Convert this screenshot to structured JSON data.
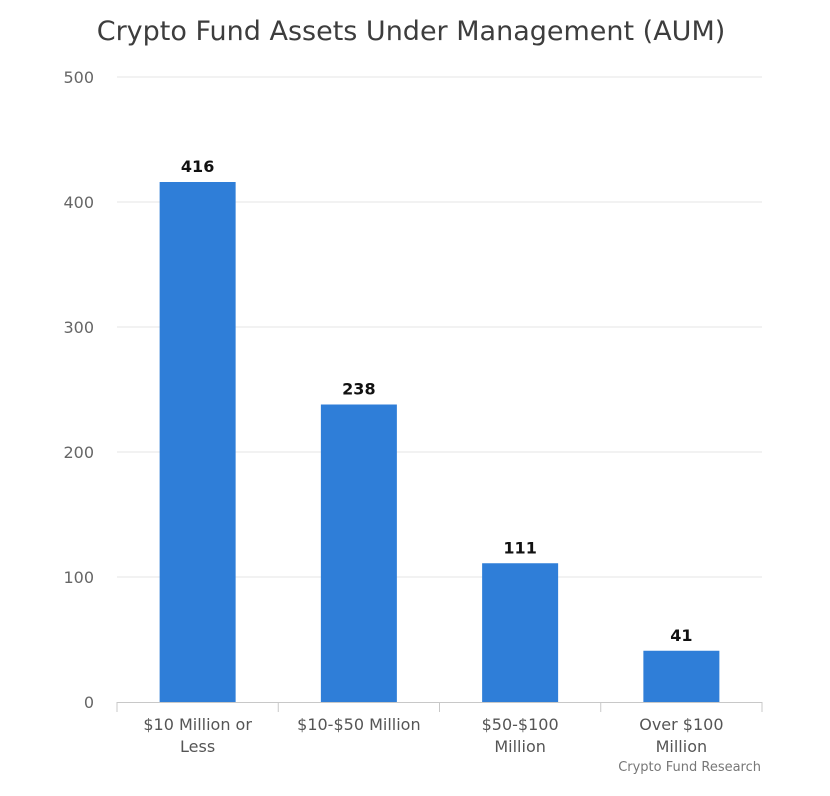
{
  "chart_data": {
    "type": "bar",
    "title": "Crypto Fund Assets Under Management (AUM)",
    "categories": [
      [
        "$10 Million or",
        "Less"
      ],
      [
        "$10-$50 Million"
      ],
      [
        "$50-$100",
        "Million"
      ],
      [
        "Over $100",
        "Million"
      ]
    ],
    "values": [
      416,
      238,
      111,
      41
    ],
    "data_labels": [
      "416",
      "238",
      "111",
      "41"
    ],
    "y_ticks": [
      "0",
      "100",
      "200",
      "300",
      "400",
      "500"
    ],
    "ylim": [
      0,
      500
    ],
    "grid": true,
    "bar_color": "#2f7ed8",
    "credit": "Crypto Fund Research"
  }
}
